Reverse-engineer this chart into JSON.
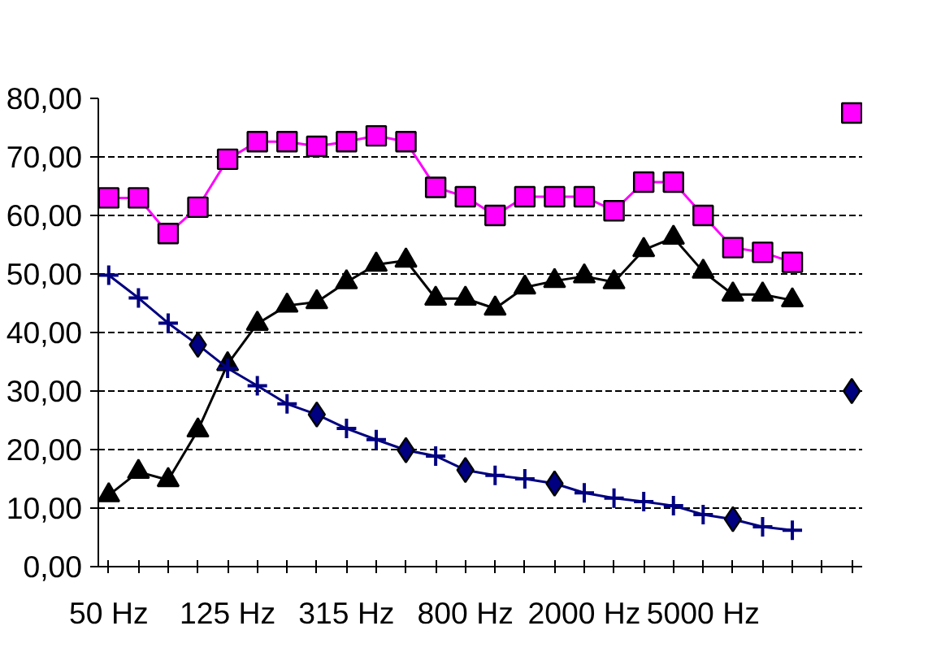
{
  "chart_data": {
    "type": "line",
    "categories": [
      "50 Hz",
      null,
      null,
      null,
      "125 Hz",
      null,
      null,
      null,
      "315 Hz",
      null,
      null,
      null,
      "800 Hz",
      null,
      null,
      null,
      "2000 Hz",
      null,
      null,
      null,
      "5000 Hz",
      null,
      null,
      null,
      null,
      null
    ],
    "ylim": [
      0,
      80
    ],
    "yticks": [
      {
        "value": 0,
        "label": "0,00"
      },
      {
        "value": 10,
        "label": "10,00"
      },
      {
        "value": 20,
        "label": "20,00"
      },
      {
        "value": 30,
        "label": "30,00"
      },
      {
        "value": 40,
        "label": "40,00"
      },
      {
        "value": 50,
        "label": "50,00"
      },
      {
        "value": 60,
        "label": "60,00"
      },
      {
        "value": 70,
        "label": "70,00"
      },
      {
        "value": 80,
        "label": "80,00"
      }
    ],
    "grid": "y",
    "series": [
      {
        "color": "#ff00ff",
        "marker": "square",
        "values": [
          63.0,
          63.0,
          56.9,
          61.4,
          69.6,
          72.6,
          72.6,
          71.8,
          72.6,
          73.6,
          72.6,
          64.8,
          63.2,
          60.0,
          63.2,
          63.2,
          63.2,
          60.8,
          65.7,
          65.7,
          60.0,
          54.5,
          53.7,
          52.0,
          null,
          77.5
        ]
      },
      {
        "color": "#000000",
        "marker": "triangle",
        "values": [
          12.2,
          16.2,
          14.8,
          23.3,
          34.6,
          41.5,
          44.6,
          45.2,
          48.6,
          51.6,
          52.3,
          45.8,
          45.8,
          44.1,
          47.7,
          48.8,
          49.6,
          48.6,
          54.1,
          56.2,
          50.4,
          46.5,
          46.5,
          45.5,
          null,
          null
        ]
      },
      {
        "color": "#000080",
        "marker": "cross",
        "values": [
          49.8,
          45.9,
          41.6,
          37.9,
          33.9,
          30.9,
          27.8,
          26.0,
          23.6,
          21.7,
          19.9,
          18.9,
          16.5,
          15.6,
          15.0,
          14.2,
          12.6,
          11.7,
          11.1,
          10.4,
          8.9,
          8.1,
          6.8,
          6.2,
          null,
          null
        ]
      },
      {
        "type": "scatter",
        "color": "#000080",
        "marker": "diamond",
        "values": [
          null,
          null,
          null,
          37.9,
          null,
          null,
          null,
          26.0,
          null,
          null,
          19.9,
          null,
          16.5,
          null,
          null,
          14.2,
          null,
          null,
          null,
          null,
          null,
          8.1,
          null,
          null,
          null,
          30.0
        ]
      }
    ]
  }
}
